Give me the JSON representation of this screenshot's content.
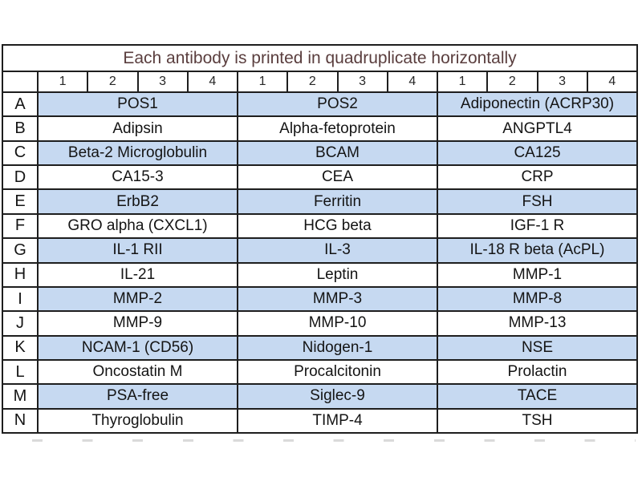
{
  "table": {
    "title": "Each antibody is printed in quadruplicate horizontally",
    "column_numbers": [
      "1",
      "2",
      "3",
      "4",
      "1",
      "2",
      "3",
      "4",
      "1",
      "2",
      "3",
      "4"
    ],
    "rows": [
      {
        "letter": "A",
        "highlight": true,
        "cells": [
          "POS1",
          "POS2",
          "Adiponectin (ACRP30)"
        ]
      },
      {
        "letter": "B",
        "highlight": false,
        "cells": [
          "Adipsin",
          "Alpha-fetoprotein",
          "ANGPTL4"
        ]
      },
      {
        "letter": "C",
        "highlight": true,
        "cells": [
          "Beta-2 Microglobulin",
          "BCAM",
          "CA125"
        ]
      },
      {
        "letter": "D",
        "highlight": false,
        "cells": [
          "CA15-3",
          "CEA",
          "CRP"
        ]
      },
      {
        "letter": "E",
        "highlight": true,
        "cells": [
          "ErbB2",
          "Ferritin",
          "FSH"
        ]
      },
      {
        "letter": "F",
        "highlight": false,
        "cells": [
          "GRO alpha (CXCL1)",
          "HCG beta",
          "IGF-1 R"
        ]
      },
      {
        "letter": "G",
        "highlight": true,
        "cells": [
          "IL-1 RII",
          "IL-3",
          "IL-18 R beta (AcPL)"
        ]
      },
      {
        "letter": "H",
        "highlight": false,
        "cells": [
          "IL-21",
          "Leptin",
          "MMP-1"
        ]
      },
      {
        "letter": "I",
        "highlight": true,
        "cells": [
          "MMP-2",
          "MMP-3",
          "MMP-8"
        ]
      },
      {
        "letter": "J",
        "highlight": false,
        "cells": [
          "MMP-9",
          "MMP-10",
          "MMP-13"
        ]
      },
      {
        "letter": "K",
        "highlight": true,
        "cells": [
          "NCAM-1 (CD56)",
          "Nidogen-1",
          "NSE"
        ]
      },
      {
        "letter": "L",
        "highlight": false,
        "cells": [
          "Oncostatin M",
          "Procalcitonin",
          "Prolactin"
        ]
      },
      {
        "letter": "M",
        "highlight": true,
        "cells": [
          "PSA-free",
          "Siglec-9",
          "TACE"
        ]
      },
      {
        "letter": "N",
        "highlight": false,
        "cells": [
          "Thyroglobulin",
          "TIMP-4",
          "TSH"
        ]
      }
    ],
    "colors": {
      "highlight_fill": "#c6d9f1",
      "title_text": "#5a3e3e",
      "border": "#1e1e1e",
      "cell_text": "#141414"
    }
  }
}
